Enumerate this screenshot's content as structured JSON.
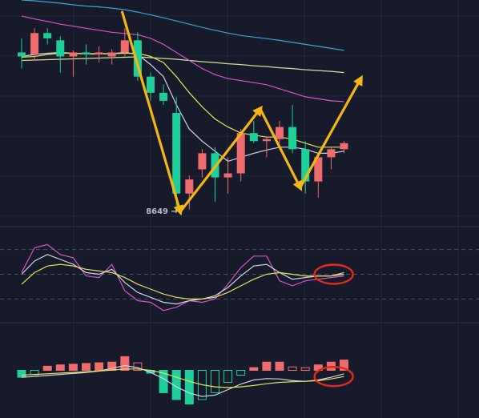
{
  "colors": {
    "background": "#161a2b",
    "grid": "#232838",
    "up": "#f06b6b",
    "down": "#1fcf9a",
    "ma_white": "#cfd3e3",
    "ma_yellow": "#e4e25c",
    "ma_pink": "#d455c8",
    "ma_blue": "#3fa0d8",
    "ma_light": "#d8dc9a",
    "arrow": "#f5b614",
    "circle": "#e02a1e",
    "low_label": "#b8bccb"
  },
  "chart_data": [
    {
      "type": "candlestick",
      "panel": "price",
      "x": [
        1,
        2,
        3,
        4,
        5,
        6,
        7,
        8,
        9,
        10,
        11,
        12,
        13,
        14,
        15,
        16,
        17,
        18,
        19,
        20,
        21,
        22,
        23,
        24,
        25,
        26
      ],
      "candles": [
        {
          "o": 9050,
          "h": 9085,
          "l": 9010,
          "c": 9040
        },
        {
          "o": 9045,
          "h": 9110,
          "l": 9030,
          "c": 9098
        },
        {
          "o": 9098,
          "h": 9110,
          "l": 9070,
          "c": 9085
        },
        {
          "o": 9080,
          "h": 9090,
          "l": 9000,
          "c": 9040
        },
        {
          "o": 9040,
          "h": 9055,
          "l": 8990,
          "c": 9050
        },
        {
          "o": 9050,
          "h": 9070,
          "l": 9020,
          "c": 9045
        },
        {
          "o": 9045,
          "h": 9065,
          "l": 9025,
          "c": 9050
        },
        {
          "o": 9040,
          "h": 9058,
          "l": 9020,
          "c": 9050
        },
        {
          "o": 9050,
          "h": 9110,
          "l": 9040,
          "c": 9080
        },
        {
          "o": 9080,
          "h": 9100,
          "l": 8980,
          "c": 8990
        },
        {
          "o": 8990,
          "h": 9000,
          "l": 8930,
          "c": 8950
        },
        {
          "o": 8950,
          "h": 8970,
          "l": 8920,
          "c": 8930
        },
        {
          "o": 8900,
          "h": 8940,
          "l": 8660,
          "c": 8700
        },
        {
          "o": 8700,
          "h": 8745,
          "l": 8660,
          "c": 8735
        },
        {
          "o": 8760,
          "h": 8810,
          "l": 8740,
          "c": 8800
        },
        {
          "o": 8800,
          "h": 8815,
          "l": 8680,
          "c": 8740
        },
        {
          "o": 8740,
          "h": 8790,
          "l": 8700,
          "c": 8750
        },
        {
          "o": 8750,
          "h": 8860,
          "l": 8730,
          "c": 8850
        },
        {
          "o": 8850,
          "h": 8880,
          "l": 8825,
          "c": 8830
        },
        {
          "o": 8830,
          "h": 8840,
          "l": 8790,
          "c": 8835
        },
        {
          "o": 8835,
          "h": 8880,
          "l": 8825,
          "c": 8865
        },
        {
          "o": 8865,
          "h": 8920,
          "l": 8800,
          "c": 8810
        },
        {
          "o": 8810,
          "h": 8830,
          "l": 8700,
          "c": 8730
        },
        {
          "o": 8730,
          "h": 8790,
          "l": 8690,
          "c": 8790
        },
        {
          "o": 8790,
          "h": 8815,
          "l": 8760,
          "c": 8810
        },
        {
          "o": 8810,
          "h": 8830,
          "l": 8800,
          "c": 8825
        }
      ],
      "price_range": [
        8620,
        9180
      ],
      "low_marker": {
        "label": "8649",
        "index": 13,
        "value": 8660
      },
      "moving_averages": [
        {
          "color_key": "ma_white",
          "values": [
            9040,
            9045,
            9048,
            9050,
            9048,
            9046,
            9046,
            9047,
            9050,
            9045,
            9020,
            8990,
            8920,
            8860,
            8830,
            8805,
            8780,
            8790,
            8800,
            8808,
            8815,
            8815,
            8810,
            8800,
            8800,
            8805
          ]
        },
        {
          "color_key": "ma_yellow",
          "values": [
            9038,
            9040,
            9045,
            9048,
            9048,
            9047,
            9047,
            9047,
            9048,
            9048,
            9040,
            9025,
            8990,
            8950,
            8915,
            8885,
            8865,
            8850,
            8845,
            8840,
            8840,
            8835,
            8825,
            8815,
            8815,
            8815
          ]
        },
        {
          "color_key": "ma_light",
          "values": [
            9030,
            9031,
            9032,
            9033,
            9034,
            9035,
            9036,
            9037,
            9038,
            9039,
            9037,
            9035,
            9033,
            9030,
            9027,
            9025,
            9022,
            9020,
            9017,
            9015,
            9012,
            9010,
            9007,
            9005,
            9003,
            9000
          ]
        },
        {
          "color_key": "ma_pink",
          "values": [
            9140,
            9133,
            9127,
            9120,
            9115,
            9110,
            9105,
            9100,
            9097,
            9094,
            9085,
            9070,
            9050,
            9030,
            9010,
            8995,
            8985,
            8980,
            8975,
            8970,
            8960,
            8950,
            8940,
            8935,
            8930,
            8928
          ]
        },
        {
          "color_key": "ma_blue",
          "values": [
            9180,
            9178,
            9175,
            9172,
            9168,
            9165,
            9163,
            9160,
            9156,
            9150,
            9143,
            9136,
            9128,
            9120,
            9112,
            9105,
            9098,
            9092,
            9088,
            9084,
            9080,
            9075,
            9070,
            9065,
            9060,
            9055
          ]
        }
      ],
      "arrows": [
        {
          "from": [
            8.8,
            9150
          ],
          "to": [
            13.3,
            8655
          ]
        },
        {
          "from": [
            13.3,
            8655
          ],
          "to": [
            19.5,
            8910
          ]
        },
        {
          "from": [
            19.5,
            8910
          ],
          "to": [
            22.6,
            8715
          ]
        },
        {
          "from": [
            22.6,
            8715
          ],
          "to": [
            27.3,
            8985
          ]
        }
      ]
    },
    {
      "type": "line",
      "panel": "oscillator",
      "x": [
        1,
        2,
        3,
        4,
        5,
        6,
        7,
        8,
        9,
        10,
        11,
        12,
        13,
        14,
        15,
        16,
        17,
        18,
        19,
        20,
        21,
        22,
        23,
        24,
        25,
        26
      ],
      "range": [
        0,
        100
      ],
      "series": [
        {
          "color_key": "ma_pink",
          "values": [
            52,
            82,
            86,
            74,
            70,
            48,
            46,
            62,
            30,
            18,
            16,
            6,
            10,
            18,
            16,
            20,
            38,
            58,
            72,
            72,
            42,
            36,
            42,
            44,
            46,
            48
          ]
        },
        {
          "color_key": "ma_white",
          "values": [
            50,
            66,
            74,
            68,
            62,
            52,
            50,
            56,
            40,
            28,
            22,
            16,
            14,
            18,
            20,
            24,
            34,
            48,
            60,
            62,
            52,
            44,
            46,
            48,
            48,
            52
          ]
        },
        {
          "color_key": "ma_yellow",
          "values": [
            38,
            52,
            60,
            62,
            60,
            56,
            54,
            52,
            46,
            38,
            32,
            26,
            22,
            20,
            20,
            22,
            28,
            36,
            44,
            50,
            52,
            50,
            48,
            48,
            48,
            50
          ]
        }
      ],
      "reference_levels": [
        80,
        50,
        20
      ]
    },
    {
      "type": "bar",
      "panel": "histogram",
      "x": [
        1,
        2,
        3,
        4,
        5,
        6,
        7,
        8,
        9,
        10,
        11,
        12,
        13,
        14,
        15,
        16,
        17,
        18,
        19,
        20,
        21,
        22,
        23,
        24,
        25,
        26
      ],
      "values": [
        -2,
        -1.3,
        1.2,
        1.6,
        1.8,
        2.0,
        2.2,
        2.4,
        4.0,
        2.2,
        -0.8,
        -6.5,
        -8.5,
        -9.8,
        -8.5,
        -6.5,
        -3.5,
        -1.4,
        0.8,
        2.4,
        2.4,
        1.0,
        0.8,
        1.6,
        2.4,
        3.0
      ],
      "range": [
        -12,
        12
      ],
      "lines": [
        {
          "color_key": "ma_white",
          "values": [
            -2,
            -1.8,
            -1.5,
            -1.2,
            -0.9,
            -0.6,
            -0.2,
            0.6,
            1.4,
            0.8,
            -0.6,
            -2.4,
            -4.8,
            -6.6,
            -7.6,
            -7.2,
            -5.6,
            -4.0,
            -2.8,
            -2.4,
            -2.5,
            -3.0,
            -3.2,
            -2.8,
            -2.0,
            -1.0
          ]
        },
        {
          "color_key": "ma_yellow",
          "values": [
            -1.4,
            -1.2,
            -1.0,
            -0.8,
            -0.6,
            -0.4,
            -0.2,
            0.1,
            0.4,
            0.4,
            0.0,
            -0.8,
            -2.0,
            -3.2,
            -4.2,
            -4.8,
            -5.0,
            -4.8,
            -4.4,
            -3.9,
            -3.5,
            -3.3,
            -3.2,
            -3.0,
            -2.5,
            -1.8
          ]
        }
      ]
    }
  ],
  "annotations": {
    "circles": [
      {
        "panel": "oscillator",
        "x": 25.2,
        "value": 50
      },
      {
        "panel": "histogram",
        "x": 25.2,
        "value": -1.8
      }
    ]
  }
}
